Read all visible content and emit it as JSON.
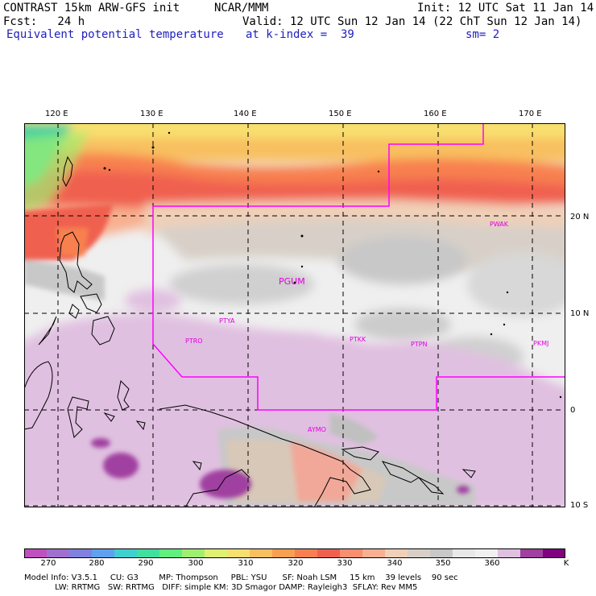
{
  "header": {
    "line1_left": "CONTRAST 15km ARW-GFS init",
    "line1_mid": "NCAR/MMM",
    "line1_right": "Init: 12 UTC Sat 11 Jan 14",
    "fcst": "Fcst:   24 h",
    "valid": "Valid: 12 UTC Sun 12 Jan 14 (22 ChT Sun 12 Jan 14)",
    "field": "Equivalent potential temperature",
    "level": "at k-index =  39",
    "smooth": "sm= 2"
  },
  "map": {
    "lon_ticks": [
      "120 E",
      "130 E",
      "140 E",
      "150 E",
      "160 E",
      "170 E"
    ],
    "lat_ticks": [
      "20 N",
      "10 N",
      "0",
      "10 S"
    ],
    "stations": [
      "PGUM",
      "PWAK",
      "PTYA",
      "PTRO",
      "PTKK",
      "PTPN",
      "PKMJ",
      "AYMO"
    ],
    "border_color": "#ff00ff",
    "grid_color": "#000000"
  },
  "colorbar": {
    "labels": [
      "270",
      "280",
      "290",
      "300",
      "310",
      "320",
      "330",
      "340",
      "350",
      "360"
    ],
    "unit": "K",
    "colors": [
      "#c050c0",
      "#a070d0",
      "#8080e0",
      "#60a0f0",
      "#40d0d0",
      "#40e0a0",
      "#60f080",
      "#a0f070",
      "#e0f070",
      "#f8e070",
      "#f8c060",
      "#f8a050",
      "#f88050",
      "#f06050",
      "#f89070",
      "#f8b090",
      "#f0d0b8",
      "#d8d0c8",
      "#c8c8c8",
      "#e8e8e8",
      "#f0f0f0",
      "#e0c0e0",
      "#a040a0",
      "#800080"
    ]
  },
  "footer": {
    "line1": "Model Info: V3.5.1     CU: G3        MP: Thompson     PBL: YSU      SF: Noah LSM     15 km    39 levels    90 sec",
    "line2": "            LW: RRTMG   SW: RRTMG   DIFF: simple KM: 3D Smagor DAMP: Rayleigh3  SFLAY: Rev MM5"
  }
}
